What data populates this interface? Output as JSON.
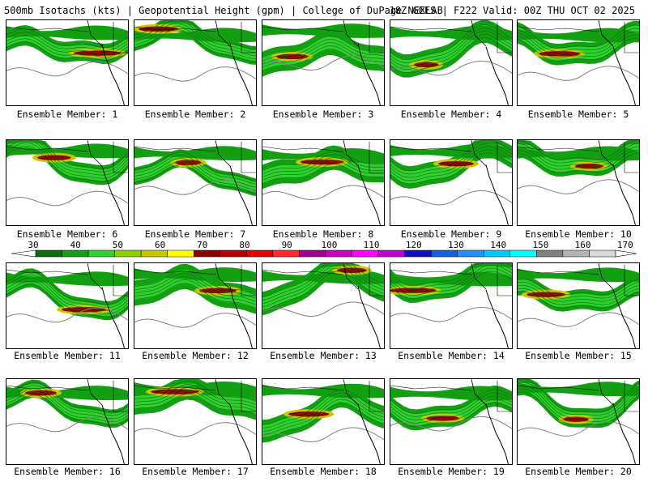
{
  "header": {
    "left": "500mb Isotachs (kts) | Geopotential Height (gpm) | College of DuPage NEXLAB",
    "right": "18Z GEFS | F222 Valid: 00Z THU OCT 02 2025"
  },
  "panels": [
    {
      "label": "Ensemble Member: 1"
    },
    {
      "label": "Ensemble Member: 2"
    },
    {
      "label": "Ensemble Member: 3"
    },
    {
      "label": "Ensemble Member: 4"
    },
    {
      "label": "Ensemble Member: 5"
    },
    {
      "label": "Ensemble Member: 6"
    },
    {
      "label": "Ensemble Member: 7"
    },
    {
      "label": "Ensemble Member: 8"
    },
    {
      "label": "Ensemble Member: 9"
    },
    {
      "label": "Ensemble Member: 10"
    },
    {
      "label": "Ensemble Member: 11"
    },
    {
      "label": "Ensemble Member: 12"
    },
    {
      "label": "Ensemble Member: 13"
    },
    {
      "label": "Ensemble Member: 14"
    },
    {
      "label": "Ensemble Member: 15"
    },
    {
      "label": "Ensemble Member: 16"
    },
    {
      "label": "Ensemble Member: 17"
    },
    {
      "label": "Ensemble Member: 18"
    },
    {
      "label": "Ensemble Member: 19"
    },
    {
      "label": "Ensemble Member: 20"
    }
  ],
  "colorbar": {
    "labels": [
      "30",
      "40",
      "50",
      "60",
      "70",
      "80",
      "90",
      "100",
      "110",
      "120",
      "130",
      "140",
      "150",
      "160",
      "170"
    ],
    "colors": [
      "#0a6e0a",
      "#12a012",
      "#30d030",
      "#8cd000",
      "#c8c800",
      "#ffff00",
      "#8c0000",
      "#b40000",
      "#e00000",
      "#ff2a2a",
      "#a00090",
      "#c800c0",
      "#ff00ff",
      "#c000d0",
      "#1010c0",
      "#1060e0",
      "#2090ff",
      "#00c8ff",
      "#00ffff",
      "#808080",
      "#b4b4b4",
      "#d8d8d8"
    ]
  },
  "colors": {
    "speed_light": "#30d030",
    "speed_mid": "#12a012",
    "speed_dark": "#0a6e0a",
    "speed_yellow": "#c8c800",
    "speed_red": "#8c0000",
    "height_contour": "#808080",
    "coast": "#000000"
  }
}
